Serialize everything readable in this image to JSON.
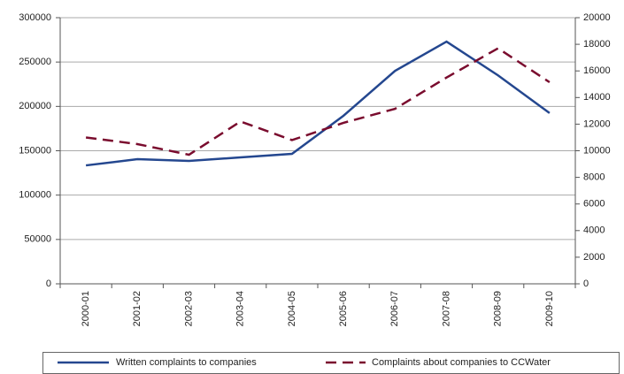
{
  "chart_data": {
    "type": "line",
    "categories": [
      "2000-01",
      "2001-02",
      "2002-03",
      "2003-04",
      "2004-05",
      "2005-06",
      "2006-07",
      "2007-08",
      "2008-09",
      "2009-10"
    ],
    "series": [
      {
        "name": "Written complaints to companies",
        "color": "#24478f",
        "values": [
          133500,
          140500,
          138500,
          142500,
          146500,
          189500,
          240000,
          273000,
          235000,
          192500
        ]
      },
      {
        "name": "Complaints about companies to CCWater",
        "color": "#7a0c2e",
        "axis": "y2",
        "values": [
          11000,
          10500,
          9700,
          12200,
          10800,
          12100,
          13150,
          15500,
          17700,
          15150
        ]
      }
    ],
    "ylim": [
      0,
      300000
    ],
    "yticks": [
      0,
      50000,
      100000,
      150000,
      200000,
      250000,
      300000
    ],
    "y2lim": [
      0,
      20000
    ],
    "y2ticks": [
      0,
      2000,
      4000,
      6000,
      8000,
      10000,
      12000,
      14000,
      16000,
      18000,
      20000
    ],
    "grid": true,
    "legend": "bottom"
  }
}
